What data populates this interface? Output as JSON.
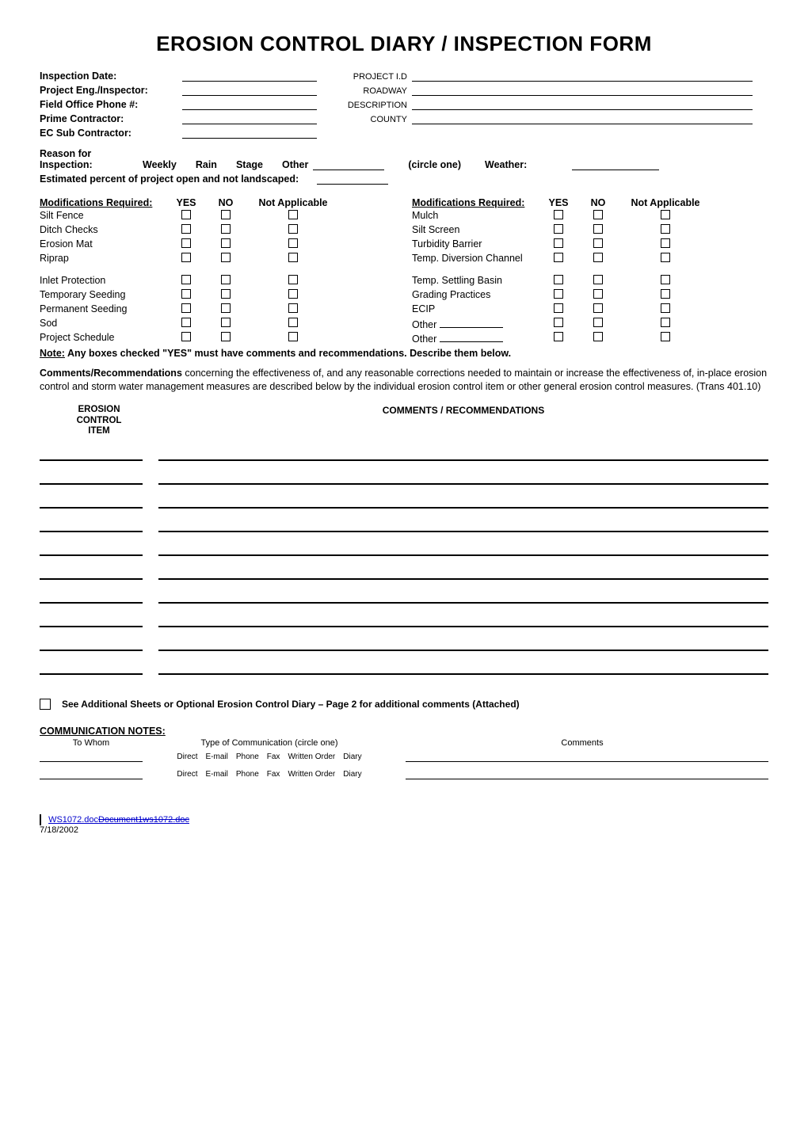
{
  "title": "EROSION CONTROL DIARY / INSPECTION FORM",
  "meta_left": [
    {
      "label": "Inspection Date:"
    },
    {
      "label": "Project Eng./Inspector:"
    },
    {
      "label": "Field Office Phone #:"
    },
    {
      "label": "Prime Contractor:"
    },
    {
      "label": "EC Sub Contractor:"
    }
  ],
  "meta_right": [
    {
      "label": "PROJECT I.D"
    },
    {
      "label": "ROADWAY"
    },
    {
      "label": "DESCRIPTION"
    },
    {
      "label": "COUNTY"
    }
  ],
  "reason": {
    "label": "Reason for Inspection:",
    "opts": [
      "Weekly",
      "Rain",
      "Stage",
      "Other"
    ],
    "circle": "(circle one)",
    "weather": "Weather:"
  },
  "estimated": "Estimated percent of project open and not landscaped:",
  "mods_header": {
    "title": "Modifications Required:",
    "yes": "YES",
    "no": "NO",
    "na": "Not Applicable"
  },
  "mods_left": [
    "Silt Fence",
    "Ditch Checks",
    "Erosion Mat",
    "Riprap",
    "__SPACER__",
    "Inlet Protection",
    "Temporary Seeding",
    "Permanent Seeding",
    "Sod",
    "Project Schedule"
  ],
  "mods_right_items": [
    {
      "text": "Mulch"
    },
    {
      "text": "Silt Screen"
    },
    {
      "text": "Turbidity Barrier"
    },
    {
      "text": "Temp. Diversion Channel"
    },
    {
      "text": "__SPACER__"
    },
    {
      "text": "Temp. Settling Basin"
    },
    {
      "text": "Grading Practices"
    },
    {
      "text": "ECIP"
    },
    {
      "text": "Other",
      "line": true
    },
    {
      "text": "Other",
      "line": true
    }
  ],
  "note": {
    "lead": "Note:",
    "rest": "  Any boxes checked \"YES\" must have comments and recommendations.  Describe them below."
  },
  "para": {
    "lead": "Comments/Recommendations",
    "rest": " concerning the effectiveness of, and any reasonable corrections needed to maintain or increase the effectiveness of, in-place erosion control and storm water management measures are described below by the individual erosion control item or other general erosion control measures. (Trans 401.10)"
  },
  "cr_head_left": "EROSION\nCONTROL\nITEM",
  "cr_head_right": "COMMENTS / RECOMMENDATIONS",
  "cr_rows": 10,
  "see_additional": "See Additional Sheets or Optional Erosion Control Diary – Page 2 for additional comments (Attached)",
  "comm_title": "COMMUNICATION NOTES:",
  "comm_header": {
    "tw": "To Whom",
    "tc": "Type of Communication (circle one)",
    "cm": "Comments"
  },
  "comm_types": [
    "Direct",
    "E-mail",
    "Phone",
    "Fax",
    "Written Order",
    "Diary"
  ],
  "comm_rows": 2,
  "footer": {
    "file_keep": "WS1072.doc",
    "file_strike": "Document1ws1072.doc",
    "date": "7/18/2002"
  },
  "colors": {
    "text": "#000000",
    "link": "#0000cc",
    "bg": "#ffffff"
  }
}
